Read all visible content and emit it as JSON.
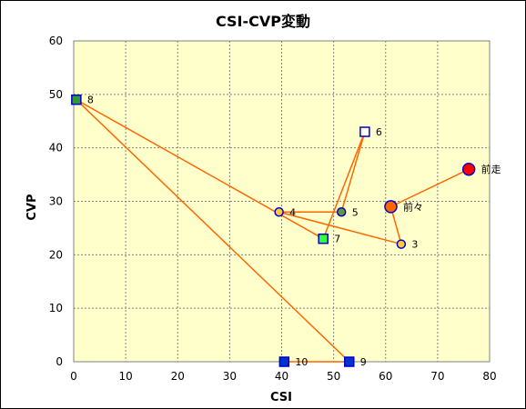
{
  "chart_data": {
    "type": "scatter",
    "title": "CSI-CVP変動",
    "xlabel": "CSI",
    "ylabel": "CVP",
    "xlim": [
      0,
      80
    ],
    "ylim": [
      0,
      60
    ],
    "xticks": [
      0,
      10,
      20,
      30,
      40,
      50,
      60,
      70,
      80
    ],
    "yticks": [
      0,
      10,
      20,
      30,
      40,
      50,
      60
    ],
    "grid": true,
    "plot_background": "#ffffcc",
    "line_color": "#ff6600",
    "points": [
      {
        "label": "前走",
        "x": 76,
        "y": 36,
        "shape": "circle",
        "fill": "#ff0000",
        "stroke": "#0000cc",
        "size": "large"
      },
      {
        "label": "前々",
        "x": 61,
        "y": 29,
        "shape": "circle",
        "fill": "#ff6600",
        "stroke": "#0000cc",
        "size": "large"
      },
      {
        "label": "3",
        "x": 63,
        "y": 22,
        "shape": "circle",
        "fill": "#ffcc33",
        "stroke": "#0000cc",
        "size": "small"
      },
      {
        "label": "4",
        "x": 39.5,
        "y": 28,
        "shape": "circle",
        "fill": "#ffcc33",
        "stroke": "#0000cc",
        "size": "small"
      },
      {
        "label": "5",
        "x": 51.5,
        "y": 28,
        "shape": "circle",
        "fill": "#669933",
        "stroke": "#0000cc",
        "size": "small"
      },
      {
        "label": "6",
        "x": 56,
        "y": 43,
        "shape": "square",
        "fill": "#ffffff",
        "stroke": "#0000cc",
        "size": "small"
      },
      {
        "label": "7",
        "x": 48,
        "y": 23,
        "shape": "square",
        "fill": "#33ff33",
        "stroke": "#0000cc",
        "size": "small"
      },
      {
        "label": "8",
        "x": 0.5,
        "y": 49,
        "shape": "square",
        "fill": "#339933",
        "stroke": "#0000cc",
        "size": "small"
      },
      {
        "label": "9",
        "x": 53,
        "y": 0,
        "shape": "square",
        "fill": "#0033cc",
        "stroke": "#0000cc",
        "size": "small"
      },
      {
        "label": "10",
        "x": 40.5,
        "y": 0,
        "shape": "square",
        "fill": "#0033cc",
        "stroke": "#0000cc",
        "size": "small"
      }
    ]
  }
}
